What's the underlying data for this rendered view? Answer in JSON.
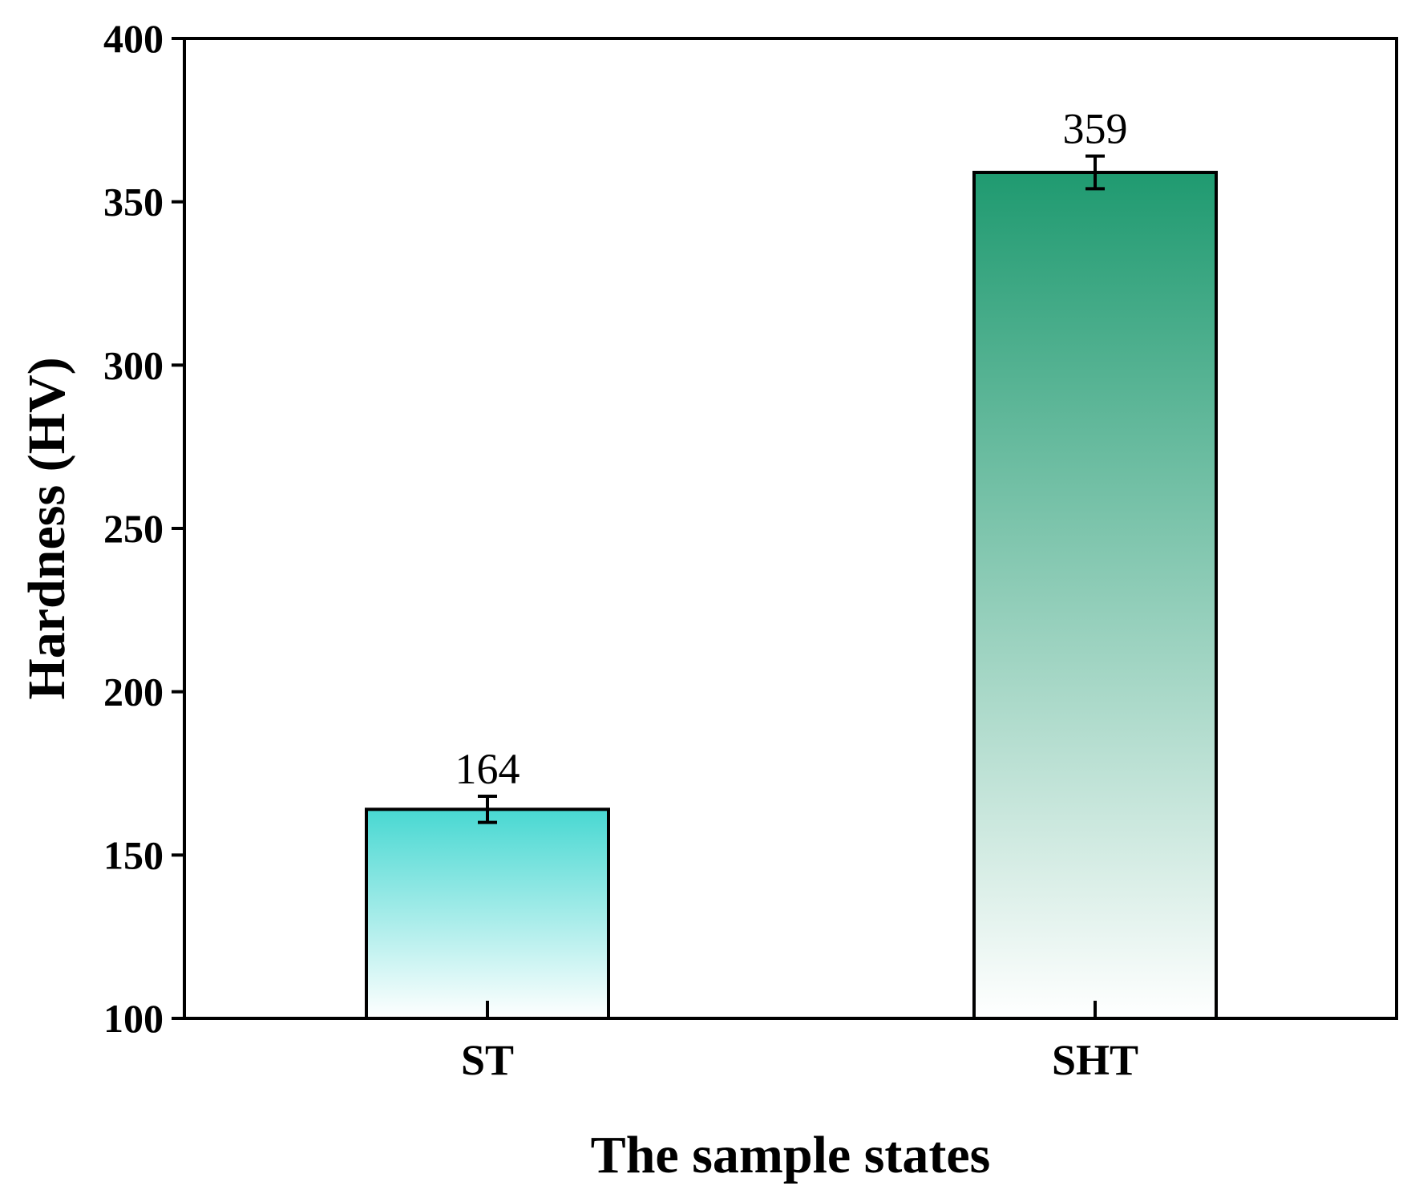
{
  "chart_data": {
    "type": "bar",
    "categories": [
      "ST",
      "SHT"
    ],
    "values": [
      164,
      359
    ],
    "errors": [
      4,
      5
    ],
    "value_labels": [
      "164",
      "359"
    ],
    "xlabel": "The sample states",
    "ylabel": "Hardness (HV)",
    "ylim": [
      100,
      400
    ],
    "yticks": [
      100,
      150,
      200,
      250,
      300,
      350,
      400
    ],
    "grid": false,
    "legend": "none",
    "colors": {
      "ST": {
        "top": "#48d8d2",
        "bottom": "#ffffff"
      },
      "SHT": {
        "top": "#1f9a70",
        "bottom": "#ffffff"
      },
      "outline": "#000000"
    }
  }
}
